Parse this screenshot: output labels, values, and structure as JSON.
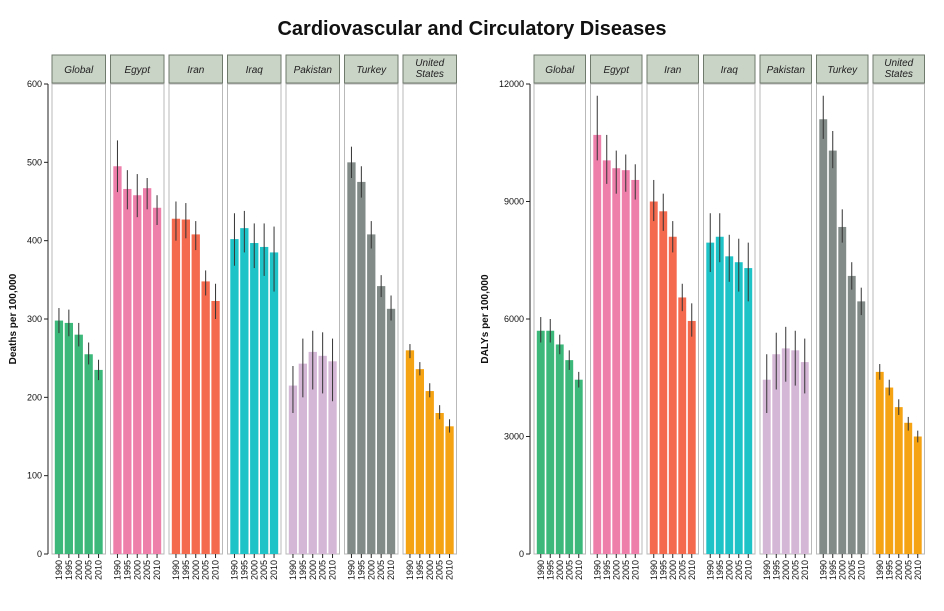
{
  "title": "Cardiovascular and Circulatory Diseases",
  "chart_data": [
    {
      "type": "bar",
      "ylabel": "Deaths per 100,000",
      "ylim": [
        0,
        600
      ],
      "yticks": [
        0,
        100,
        200,
        300,
        400,
        500,
        600
      ],
      "years": [
        "1990",
        "1995",
        "2000",
        "2005",
        "2010"
      ],
      "panels": [
        {
          "name": "Global",
          "color": "#3cb87a",
          "values": [
            298,
            295,
            280,
            255,
            235
          ],
          "err_low": [
            282,
            278,
            265,
            242,
            222
          ],
          "err_high": [
            314,
            312,
            295,
            270,
            248
          ]
        },
        {
          "name": "Egypt",
          "color": "#ee7fab",
          "values": [
            495,
            466,
            458,
            467,
            442
          ],
          "err_low": [
            462,
            440,
            430,
            440,
            420
          ],
          "err_high": [
            528,
            490,
            485,
            480,
            458
          ]
        },
        {
          "name": "Iran",
          "color": "#f46a4e",
          "values": [
            428,
            427,
            408,
            348,
            323
          ],
          "err_low": [
            400,
            403,
            388,
            330,
            300
          ],
          "err_high": [
            450,
            448,
            425,
            362,
            345
          ]
        },
        {
          "name": "Iraq",
          "color": "#1ec3c8",
          "values": [
            402,
            416,
            397,
            392,
            385
          ],
          "err_low": [
            368,
            385,
            365,
            355,
            335
          ],
          "err_high": [
            435,
            438,
            422,
            422,
            418
          ]
        },
        {
          "name": "Pakistan",
          "color": "#d4b6d6",
          "values": [
            215,
            243,
            258,
            253,
            246
          ],
          "err_low": [
            180,
            200,
            210,
            205,
            195
          ],
          "err_high": [
            240,
            275,
            285,
            283,
            275
          ]
        },
        {
          "name": "Turkey",
          "color": "#828b88",
          "values": [
            500,
            475,
            408,
            342,
            313
          ],
          "err_low": [
            480,
            455,
            390,
            328,
            298
          ],
          "err_high": [
            520,
            495,
            425,
            356,
            330
          ]
        },
        {
          "name": "United\nStates",
          "color": "#f5a313",
          "values": [
            260,
            236,
            208,
            180,
            163
          ],
          "err_low": [
            250,
            228,
            200,
            172,
            155
          ],
          "err_high": [
            268,
            245,
            218,
            190,
            172
          ]
        }
      ]
    },
    {
      "type": "bar",
      "ylabel": "DALYs per 100,000",
      "ylim": [
        0,
        12000
      ],
      "yticks": [
        0,
        3000,
        6000,
        9000,
        12000
      ],
      "years": [
        "1990",
        "1995",
        "2000",
        "2005",
        "2010"
      ],
      "panels": [
        {
          "name": "Global",
          "color": "#3cb87a",
          "values": [
            5700,
            5700,
            5350,
            4950,
            4450
          ],
          "err_low": [
            5400,
            5400,
            5100,
            4700,
            4250
          ],
          "err_high": [
            6050,
            6000,
            5600,
            5200,
            4650
          ]
        },
        {
          "name": "Egypt",
          "color": "#ee7fab",
          "values": [
            10700,
            10050,
            9850,
            9800,
            9550
          ],
          "err_low": [
            10050,
            9450,
            9200,
            9250,
            9050
          ],
          "err_high": [
            11700,
            10700,
            10300,
            10200,
            9950
          ]
        },
        {
          "name": "Iran",
          "color": "#f46a4e",
          "values": [
            9000,
            8750,
            8100,
            6550,
            5950
          ],
          "err_low": [
            8500,
            8250,
            7700,
            6200,
            5550
          ],
          "err_high": [
            9550,
            9200,
            8500,
            6900,
            6400
          ]
        },
        {
          "name": "Iraq",
          "color": "#1ec3c8",
          "values": [
            7950,
            8100,
            7600,
            7450,
            7300
          ],
          "err_low": [
            7200,
            7450,
            6950,
            6700,
            6450
          ],
          "err_high": [
            8700,
            8700,
            8150,
            8050,
            7950
          ]
        },
        {
          "name": "Pakistan",
          "color": "#d4b6d6",
          "values": [
            4450,
            5100,
            5250,
            5200,
            4900
          ],
          "err_low": [
            3600,
            4200,
            4400,
            4300,
            4100
          ],
          "err_high": [
            5100,
            5650,
            5800,
            5700,
            5500
          ]
        },
        {
          "name": "Turkey",
          "color": "#828b88",
          "values": [
            11100,
            10300,
            8350,
            7100,
            6450
          ],
          "err_low": [
            10600,
            9850,
            7950,
            6750,
            6100
          ],
          "err_high": [
            11700,
            10800,
            8800,
            7450,
            6800
          ]
        },
        {
          "name": "United\nStates",
          "color": "#f5a313",
          "values": [
            4650,
            4250,
            3750,
            3350,
            3000
          ],
          "err_low": [
            4450,
            4050,
            3550,
            3150,
            2850
          ],
          "err_high": [
            4850,
            4450,
            3950,
            3500,
            3150
          ]
        }
      ]
    }
  ]
}
